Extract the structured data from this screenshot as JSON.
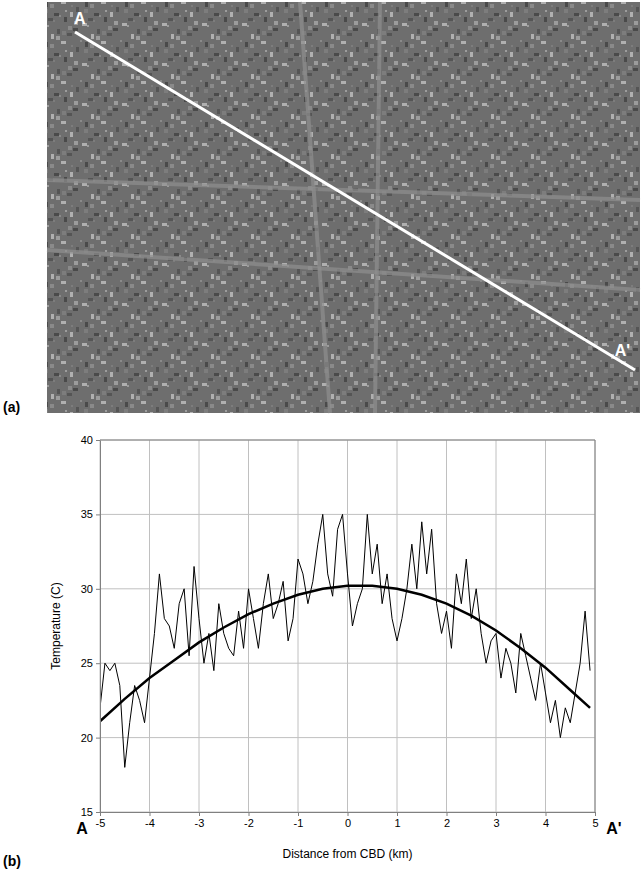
{
  "figure": {
    "panel_a": {
      "label": "(a)",
      "line_labels": [
        "A",
        "A'"
      ]
    },
    "panel_b": {
      "label": "(b)"
    }
  },
  "chart_data": {
    "type": "line",
    "x_label": "Distance from CBD (km)",
    "y_label": "Temperature (C)",
    "annotations": [
      "A",
      "A'"
    ],
    "xlim": [
      -5,
      5
    ],
    "xticks": [
      -5,
      -4,
      -3,
      -2,
      -1,
      0,
      1,
      2,
      3,
      4,
      5
    ],
    "ylim": [
      15,
      40
    ],
    "yticks": [
      15,
      20,
      25,
      30,
      35,
      40
    ],
    "grid": true,
    "series": [
      {
        "color": "#000000",
        "line_style": "solid",
        "x": [
          -5.0,
          -4.9,
          -4.8,
          -4.7,
          -4.6,
          -4.5,
          -4.4,
          -4.3,
          -4.2,
          -4.1,
          -4.0,
          -3.9,
          -3.8,
          -3.7,
          -3.6,
          -3.5,
          -3.4,
          -3.3,
          -3.2,
          -3.1,
          -3.0,
          -2.9,
          -2.8,
          -2.7,
          -2.6,
          -2.5,
          -2.4,
          -2.3,
          -2.2,
          -2.1,
          -2.0,
          -1.9,
          -1.8,
          -1.7,
          -1.6,
          -1.5,
          -1.4,
          -1.3,
          -1.2,
          -1.1,
          -1.0,
          -0.9,
          -0.8,
          -0.7,
          -0.6,
          -0.5,
          -0.4,
          -0.3,
          -0.2,
          -0.1,
          0.0,
          0.1,
          0.2,
          0.3,
          0.4,
          0.5,
          0.6,
          0.7,
          0.8,
          0.9,
          1.0,
          1.1,
          1.2,
          1.3,
          1.4,
          1.5,
          1.6,
          1.7,
          1.8,
          1.9,
          2.0,
          2.1,
          2.2,
          2.3,
          2.4,
          2.5,
          2.6,
          2.7,
          2.8,
          2.9,
          3.0,
          3.1,
          3.2,
          3.3,
          3.4,
          3.5,
          3.6,
          3.7,
          3.8,
          3.9,
          4.0,
          4.1,
          4.2,
          4.3,
          4.4,
          4.5,
          4.6,
          4.7,
          4.8,
          4.9
        ],
        "values": [
          22,
          25,
          24.5,
          25,
          23.5,
          18,
          21,
          23.5,
          22.5,
          21,
          24,
          27,
          31,
          28,
          27.5,
          26,
          29,
          30,
          25.5,
          31.5,
          28,
          25,
          27,
          24.5,
          29,
          27,
          26,
          25.5,
          28.5,
          26,
          30,
          28,
          26,
          29,
          31,
          28,
          29,
          30.5,
          26.5,
          28,
          32,
          31,
          29,
          30.5,
          33,
          35,
          31,
          29.5,
          34,
          35,
          31,
          27.5,
          29,
          30,
          35,
          31,
          33,
          29,
          31,
          28,
          26.5,
          28,
          30,
          33,
          30,
          34.5,
          31,
          34,
          29,
          27,
          28.5,
          26,
          31,
          29,
          32,
          28,
          30,
          27,
          25,
          26.5,
          27,
          24,
          26,
          25,
          23,
          27,
          25.5,
          24,
          22.5,
          25,
          23,
          21,
          22.5,
          20,
          22,
          21,
          23,
          25,
          28.5,
          24.5
        ]
      },
      {
        "color": "#000000",
        "line_style": "solid",
        "x": [
          -5.0,
          -4.5,
          -4.0,
          -3.5,
          -3.0,
          -2.5,
          -2.0,
          -1.5,
          -1.0,
          -0.5,
          0.0,
          0.5,
          1.0,
          1.5,
          2.0,
          2.5,
          3.0,
          3.5,
          4.0,
          4.5,
          4.9
        ],
        "values": [
          21.1,
          22.6,
          24.0,
          25.2,
          26.4,
          27.4,
          28.3,
          29.0,
          29.6,
          30.0,
          30.2,
          30.2,
          30.0,
          29.6,
          29.0,
          28.2,
          27.2,
          26.0,
          24.7,
          23.2,
          22.0
        ]
      }
    ]
  }
}
